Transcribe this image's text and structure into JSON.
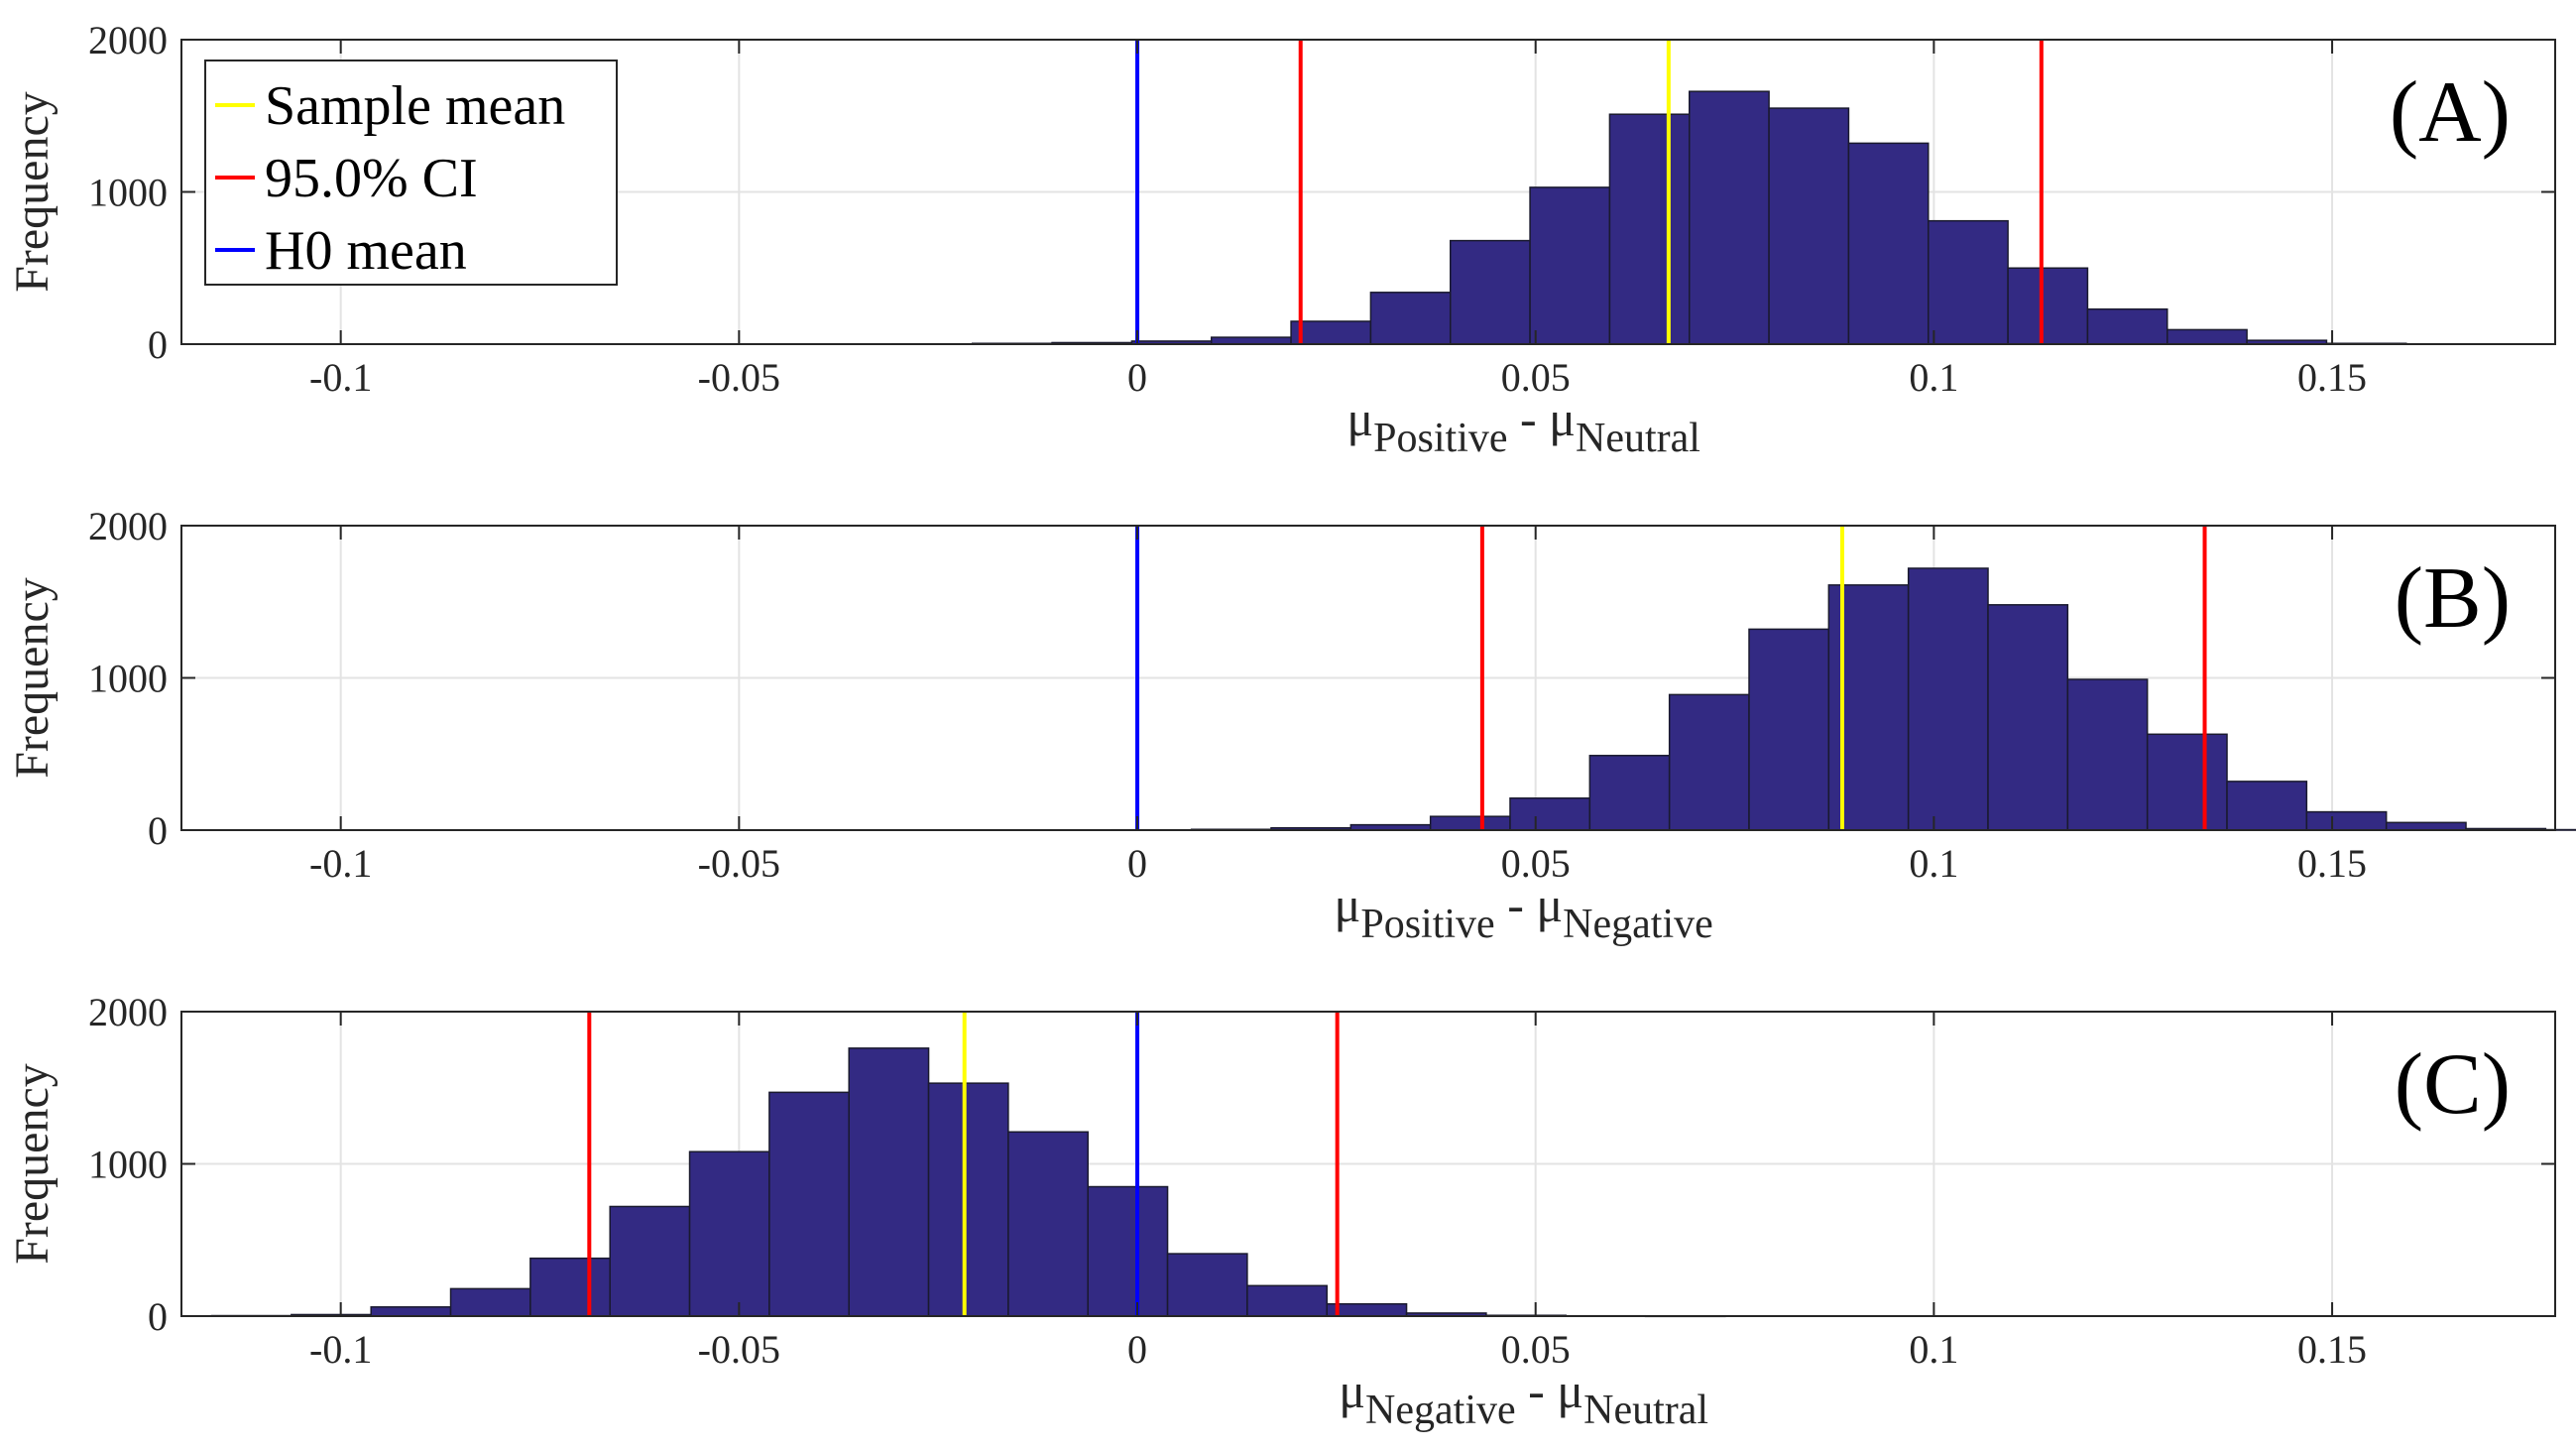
{
  "chart_data": [
    {
      "type": "bar",
      "panel_label": "(A)",
      "xlabel": {
        "mu1": "μ",
        "sub1": "Positive",
        "sep": " - ",
        "mu2": "μ",
        "sub2": "Neutral"
      },
      "ylabel": "Frequency",
      "xlim": [
        -0.12,
        0.178
      ],
      "ylim": [
        0,
        2000
      ],
      "xticks": [
        -0.1,
        -0.05,
        0,
        0.05,
        0.1,
        0.15
      ],
      "xtick_labels": [
        "-0.1",
        "-0.05",
        "0",
        "0.05",
        "0.1",
        "0.15"
      ],
      "yticks": [
        0,
        1000,
        2000
      ],
      "ytick_labels": [
        "0",
        "1000",
        "2000"
      ],
      "grid": true,
      "bin_width": 0.01,
      "bin_start": -0.0307,
      "counts": [
        2,
        5,
        10,
        20,
        45,
        150,
        340,
        680,
        1030,
        1510,
        1660,
        1550,
        1320,
        810,
        500,
        230,
        95,
        25,
        5
      ],
      "lines": {
        "sample_mean": 0.0667,
        "ci": [
          0.0205,
          0.1135
        ],
        "h0_mean": 0
      },
      "legend": {
        "position": "top-left",
        "entries": [
          "Sample mean",
          " 95.0% CI",
          "H0 mean"
        ]
      }
    },
    {
      "type": "bar",
      "panel_label": "(B)",
      "xlabel": {
        "mu1": "μ",
        "sub1": "Positive",
        "sep": " - ",
        "mu2": "μ",
        "sub2": "Negative"
      },
      "ylabel": "Frequency",
      "xlim": [
        -0.12,
        0.178
      ],
      "ylim": [
        0,
        2000
      ],
      "xticks": [
        -0.1,
        -0.05,
        0,
        0.05,
        0.1,
        0.15
      ],
      "xtick_labels": [
        "-0.1",
        "-0.05",
        "0",
        "0.05",
        "0.1",
        "0.15"
      ],
      "yticks": [
        0,
        1000,
        2000
      ],
      "ytick_labels": [
        "0",
        "1000",
        "2000"
      ],
      "grid": true,
      "bin_width": 0.01,
      "bin_start": -0.0032,
      "counts": [
        2,
        5,
        15,
        35,
        90,
        210,
        490,
        890,
        1320,
        1610,
        1720,
        1480,
        990,
        630,
        320,
        120,
        50,
        10,
        3
      ],
      "lines": {
        "sample_mean": 0.0885,
        "ci": [
          0.0433,
          0.134
        ],
        "h0_mean": 0
      }
    },
    {
      "type": "bar",
      "panel_label": "(C)",
      "xlabel": {
        "mu1": "μ",
        "sub1": "Negative",
        "sep": " - ",
        "mu2": "μ",
        "sub2": "Neutral"
      },
      "ylabel": "Frequency",
      "xlim": [
        -0.12,
        0.178
      ],
      "ylim": [
        0,
        2000
      ],
      "xticks": [
        -0.1,
        -0.05,
        0,
        0.05,
        0.1,
        0.15
      ],
      "xtick_labels": [
        "-0.1",
        "-0.05",
        "0",
        "0.05",
        "0.1",
        "0.15"
      ],
      "yticks": [
        0,
        1000,
        2000
      ],
      "ytick_labels": [
        "0",
        "1000",
        "2000"
      ],
      "grid": true,
      "bin_width": 0.01,
      "bin_start": -0.1162,
      "counts": [
        3,
        10,
        60,
        180,
        380,
        720,
        1080,
        1470,
        1760,
        1530,
        1210,
        850,
        410,
        200,
        80,
        20,
        5,
        2,
        1
      ],
      "lines": {
        "sample_mean": -0.0217,
        "ci": [
          -0.0688,
          0.0251
        ],
        "h0_mean": 0
      }
    }
  ],
  "colors": {
    "bar_fill": "#332a83",
    "bar_edge": "#1a1a2e",
    "sample_mean": "#ffff00",
    "ci": "#ff0000",
    "h0_mean": "#0000ff",
    "grid": "#e3e3e3",
    "axis": "#262626"
  }
}
